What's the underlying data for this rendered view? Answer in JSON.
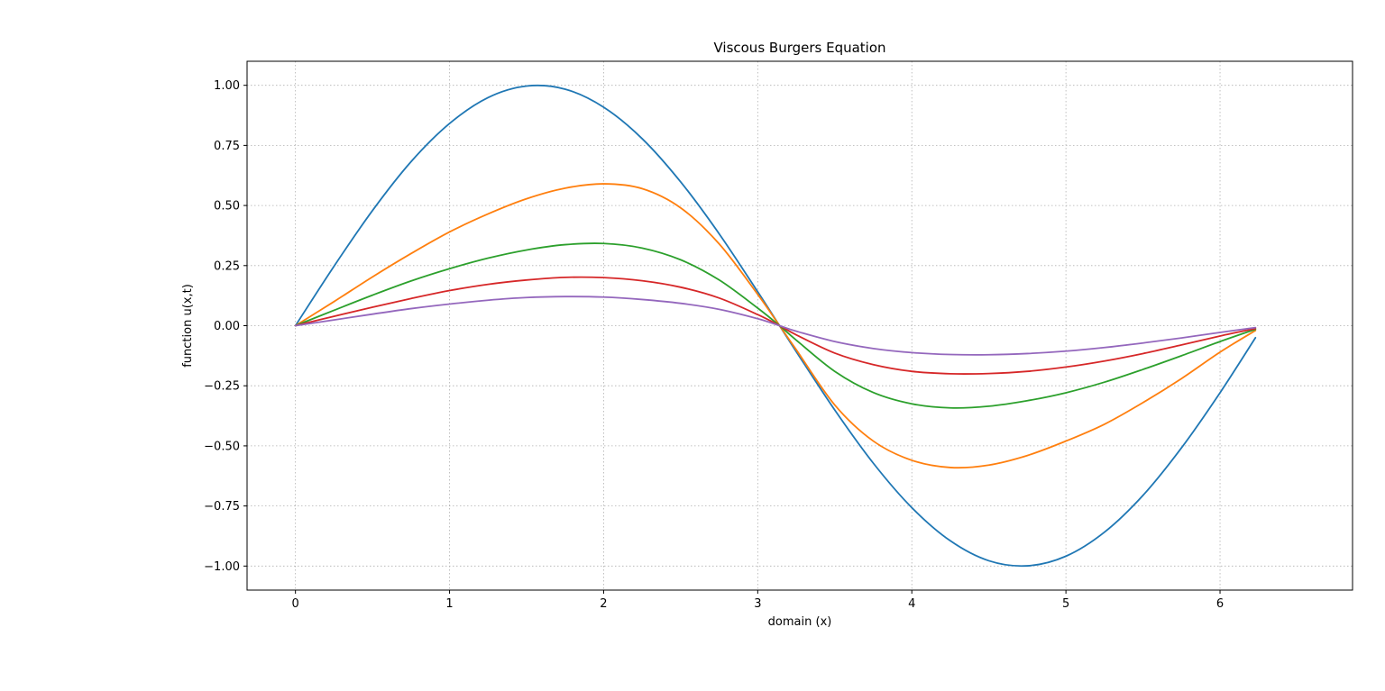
{
  "chart_data": {
    "type": "line",
    "title": "Viscous Burgers Equation",
    "xlabel": "domain (x)",
    "ylabel": "function u(x,t)",
    "xlim": [
      -0.314,
      6.86
    ],
    "ylim": [
      -1.1,
      1.1
    ],
    "x_ticks": [
      0,
      1,
      2,
      3,
      4,
      5,
      6
    ],
    "x_tick_labels": [
      "0",
      "1",
      "2",
      "3",
      "4",
      "5",
      "6"
    ],
    "y_ticks": [
      1.0,
      0.75,
      0.5,
      0.25,
      0.0,
      -0.25,
      -0.5,
      -0.75,
      -1.0
    ],
    "y_tick_labels": [
      "1.00",
      "0.75",
      "0.50",
      "0.25",
      "0.00",
      "−0.25",
      "−0.50",
      "−0.75",
      "−1.00"
    ],
    "grid": true,
    "x": [
      0,
      0.25,
      0.5,
      0.75,
      1.0,
      1.25,
      1.5,
      1.75,
      2.0,
      2.25,
      2.5,
      2.75,
      3.0,
      3.1416,
      3.25,
      3.5,
      3.75,
      4.0,
      4.25,
      4.5,
      4.75,
      5.0,
      5.25,
      5.5,
      5.75,
      6.0,
      6.23
    ],
    "series": [
      {
        "color": "#1f77b4",
        "values": [
          0,
          0.247,
          0.479,
          0.682,
          0.841,
          0.949,
          0.997,
          0.984,
          0.909,
          0.778,
          0.598,
          0.382,
          0.141,
          0,
          -0.108,
          -0.351,
          -0.572,
          -0.757,
          -0.895,
          -0.978,
          -0.999,
          -0.959,
          -0.859,
          -0.706,
          -0.508,
          -0.279,
          -0.05
        ]
      },
      {
        "color": "#ff7f0e",
        "values": [
          0,
          0.1,
          0.203,
          0.3,
          0.39,
          0.465,
          0.528,
          0.572,
          0.59,
          0.57,
          0.49,
          0.34,
          0.13,
          0,
          -0.1,
          -0.33,
          -0.48,
          -0.56,
          -0.59,
          -0.58,
          -0.54,
          -0.48,
          -0.41,
          -0.32,
          -0.22,
          -0.11,
          -0.02
        ]
      },
      {
        "color": "#2ca02c",
        "values": [
          0,
          0.064,
          0.127,
          0.186,
          0.237,
          0.281,
          0.315,
          0.337,
          0.342,
          0.323,
          0.274,
          0.19,
          0.073,
          0,
          -0.06,
          -0.19,
          -0.278,
          -0.325,
          -0.342,
          -0.335,
          -0.312,
          -0.279,
          -0.235,
          -0.182,
          -0.125,
          -0.066,
          -0.015
        ]
      },
      {
        "color": "#d62728",
        "values": [
          0,
          0.039,
          0.077,
          0.113,
          0.146,
          0.172,
          0.19,
          0.201,
          0.2,
          0.187,
          0.16,
          0.115,
          0.046,
          0,
          -0.038,
          -0.114,
          -0.162,
          -0.19,
          -0.2,
          -0.199,
          -0.19,
          -0.172,
          -0.147,
          -0.116,
          -0.08,
          -0.043,
          -0.012
        ]
      },
      {
        "color": "#9467bd",
        "values": [
          0,
          0.024,
          0.048,
          0.071,
          0.09,
          0.106,
          0.117,
          0.121,
          0.119,
          0.109,
          0.093,
          0.068,
          0.029,
          0,
          -0.023,
          -0.066,
          -0.095,
          -0.112,
          -0.12,
          -0.121,
          -0.116,
          -0.106,
          -0.091,
          -0.072,
          -0.051,
          -0.028,
          -0.008
        ]
      }
    ]
  }
}
